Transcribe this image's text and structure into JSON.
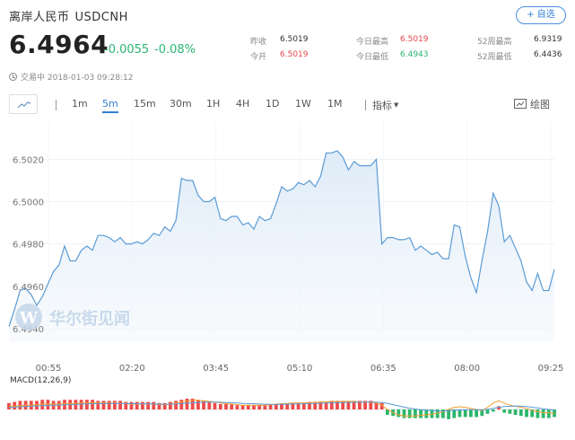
{
  "header": {
    "name": "离岸人民币",
    "symbol": "USDCNH",
    "add_label": "+ 自选"
  },
  "quote": {
    "price": "6.4964",
    "change": "-0.0055",
    "change_pct": "-0.08%",
    "status_time": "交易中 2018-01-03 09:28:12"
  },
  "stats": {
    "prev_close_label": "昨收",
    "prev_close": "6.5019",
    "open_label": "今开",
    "open": "6.5019",
    "day_high_label": "今日最高",
    "day_high": "6.5019",
    "day_low_label": "今日最低",
    "day_low": "6.4943",
    "w52_high_label": "52周最高",
    "w52_high": "6.9319",
    "w52_low_label": "52周最低",
    "w52_low": "6.4436"
  },
  "toolbar": {
    "tabs": [
      "1m",
      "5m",
      "15m",
      "30m",
      "1H",
      "4H",
      "1D",
      "1W",
      "1M"
    ],
    "active_tab": "5m",
    "indicator_label": "指标",
    "draw_label": "绘图"
  },
  "watermark": "华尔街见闻",
  "macd_label": "MACD(12,26,9)",
  "chart_data": {
    "type": "area",
    "y_ticks": [
      "6.5020",
      "6.5000",
      "6.4980",
      "6.4960",
      "6.4940"
    ],
    "x_ticks": [
      "00:55",
      "02:20",
      "03:45",
      "05:10",
      "06:35",
      "08:00",
      "09:25"
    ],
    "ylim": [
      6.4934,
      6.5038
    ],
    "line_color": "#5b9bd5",
    "price_series": [
      6.4941,
      6.4949,
      6.4958,
      6.4959,
      6.4956,
      6.4951,
      6.4955,
      6.4961,
      6.4967,
      6.497,
      6.4979,
      6.4972,
      6.4972,
      6.4977,
      6.4979,
      6.4977,
      6.4984,
      6.4984,
      6.4983,
      6.4981,
      6.4983,
      6.498,
      6.498,
      6.4981,
      6.498,
      6.4982,
      6.4985,
      6.4984,
      6.4988,
      6.4986,
      6.4991,
      6.5011,
      6.501,
      6.501,
      6.5003,
      6.5,
      6.5,
      6.5002,
      6.4992,
      6.4991,
      6.4993,
      6.4993,
      6.4989,
      6.499,
      6.4987,
      6.4993,
      6.4991,
      6.4992,
      6.4999,
      6.5007,
      6.5005,
      6.5006,
      6.5009,
      6.5008,
      6.501,
      6.5007,
      6.5012,
      6.5023,
      6.5023,
      6.5024,
      6.5021,
      6.5015,
      6.5019,
      6.5017,
      6.5017,
      6.5017,
      6.502,
      6.498,
      6.4983,
      6.4983,
      6.4982,
      6.4982,
      6.4983,
      6.4977,
      6.4979,
      6.4977,
      6.4975,
      6.4976,
      6.4973,
      6.4973,
      6.4989,
      6.4988,
      6.4974,
      6.4964,
      6.4957,
      6.4972,
      6.4986,
      6.5004,
      6.4998,
      6.4981,
      6.4984,
      6.4978,
      6.4972,
      6.4962,
      6.4958,
      6.4966,
      6.4958,
      6.4958,
      6.4968
    ],
    "macd_hist": [
      0.6,
      0.7,
      0.8,
      0.8,
      0.8,
      0.8,
      0.9,
      0.9,
      0.8,
      0.8,
      0.9,
      0.9,
      0.9,
      0.9,
      0.9,
      0.9,
      0.8,
      0.8,
      0.8,
      0.8,
      0.8,
      0.7,
      0.7,
      0.7,
      0.7,
      0.7,
      0.7,
      0.6,
      0.6,
      0.7,
      0.8,
      0.9,
      1.0,
      1.0,
      0.9,
      0.8,
      0.7,
      0.6,
      0.5,
      0.5,
      0.5,
      0.4,
      0.4,
      0.4,
      0.4,
      0.4,
      0.4,
      0.5,
      0.5,
      0.5,
      0.5,
      0.6,
      0.6,
      0.6,
      0.7,
      0.7,
      0.7,
      0.7,
      0.8,
      0.8,
      0.8,
      0.8,
      0.8,
      0.8,
      0.8,
      0.8,
      0.7,
      0.6,
      -0.5,
      -0.6,
      -0.7,
      -0.8,
      -0.8,
      -0.8,
      -0.8,
      -0.8,
      -0.8,
      -0.8,
      -0.8,
      -0.9,
      -0.8,
      -0.7,
      -0.7,
      -0.7,
      -0.7,
      -0.6,
      -0.4,
      -0.2,
      0.3,
      -0.3,
      -0.4,
      -0.5,
      -0.6,
      -0.7,
      -0.7,
      -0.8,
      -0.8,
      -0.8,
      -0.7
    ],
    "macd_line": [
      0.3,
      0.3,
      0.35,
      0.4,
      0.4,
      0.45,
      0.5,
      0.5,
      0.5,
      0.5,
      0.55,
      0.55,
      0.55,
      0.6,
      0.6,
      0.6,
      0.6,
      0.6,
      0.6,
      0.6,
      0.55,
      0.55,
      0.5,
      0.5,
      0.5,
      0.5,
      0.5,
      0.45,
      0.45,
      0.5,
      0.6,
      0.7,
      0.8,
      0.85,
      0.85,
      0.8,
      0.75,
      0.7,
      0.6,
      0.55,
      0.5,
      0.45,
      0.4,
      0.4,
      0.4,
      0.4,
      0.4,
      0.45,
      0.5,
      0.55,
      0.55,
      0.6,
      0.6,
      0.6,
      0.65,
      0.65,
      0.7,
      0.7,
      0.75,
      0.75,
      0.75,
      0.75,
      0.75,
      0.7,
      0.7,
      0.65,
      0.6,
      0.4,
      0.0,
      -0.3,
      -0.5,
      -0.6,
      -0.6,
      -0.6,
      -0.55,
      -0.5,
      -0.45,
      -0.35,
      -0.2,
      0.0,
      0.2,
      0.25,
      0.2,
      0.1,
      0.0,
      -0.1,
      0.2,
      0.6,
      0.8,
      0.6,
      0.4,
      0.3,
      0.2,
      0.1,
      -0.1,
      -0.2,
      -0.3,
      -0.3,
      -0.4
    ],
    "signal_line": [
      0.2,
      0.22,
      0.25,
      0.28,
      0.3,
      0.33,
      0.36,
      0.38,
      0.4,
      0.42,
      0.44,
      0.46,
      0.48,
      0.5,
      0.52,
      0.53,
      0.54,
      0.55,
      0.56,
      0.56,
      0.56,
      0.55,
      0.54,
      0.53,
      0.52,
      0.52,
      0.51,
      0.5,
      0.49,
      0.49,
      0.51,
      0.54,
      0.58,
      0.62,
      0.65,
      0.67,
      0.68,
      0.68,
      0.67,
      0.65,
      0.63,
      0.6,
      0.57,
      0.55,
      0.53,
      0.51,
      0.49,
      0.48,
      0.48,
      0.49,
      0.5,
      0.51,
      0.52,
      0.53,
      0.55,
      0.56,
      0.58,
      0.6,
      0.62,
      0.63,
      0.65,
      0.66,
      0.67,
      0.68,
      0.68,
      0.68,
      0.67,
      0.64,
      0.56,
      0.45,
      0.33,
      0.22,
      0.12,
      0.04,
      -0.02,
      -0.07,
      -0.11,
      -0.13,
      -0.14,
      -0.12,
      -0.08,
      -0.05,
      -0.03,
      -0.02,
      -0.02,
      -0.03,
      0.01,
      0.1,
      0.2,
      0.27,
      0.3,
      0.31,
      0.3,
      0.27,
      0.21,
      0.14,
      0.06,
      0.0,
      -0.08
    ]
  }
}
